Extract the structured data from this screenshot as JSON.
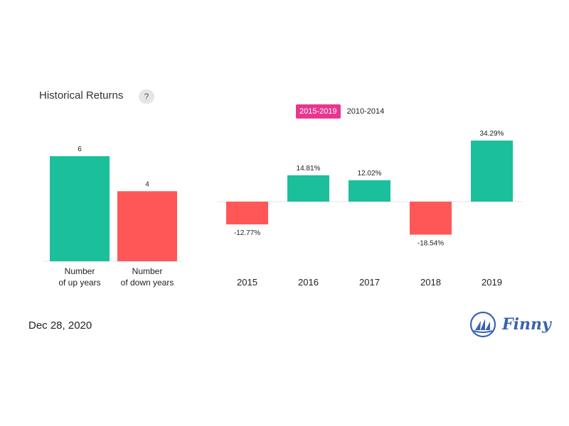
{
  "header": {
    "title": "Historical Returns",
    "help_label": "?"
  },
  "tabs": [
    {
      "label": "2015-2019",
      "active": true
    },
    {
      "label": "2010-2014",
      "active": false
    }
  ],
  "footer": {
    "date": "Dec 28, 2020",
    "brand": "Finny"
  },
  "colors": {
    "positive": "#1bbf9b",
    "negative": "#ff5757",
    "active_tab": "#e8368f",
    "brand": "#3a62b3"
  },
  "chart_data": [
    {
      "type": "bar",
      "categories": [
        "Number of up years",
        "Number of down years"
      ],
      "category_lines": [
        [
          "Number",
          "of up years"
        ],
        [
          "Number",
          "of down years"
        ]
      ],
      "values": [
        6,
        4
      ],
      "ylim": [
        0,
        6
      ]
    },
    {
      "type": "bar",
      "categories": [
        "2015",
        "2016",
        "2017",
        "2018",
        "2019"
      ],
      "values": [
        -12.77,
        14.81,
        12.02,
        -18.54,
        34.29
      ],
      "value_labels": [
        "-12.77%",
        "14.81%",
        "12.02%",
        "-18.54%",
        "34.29%"
      ],
      "unit": "%"
    }
  ]
}
